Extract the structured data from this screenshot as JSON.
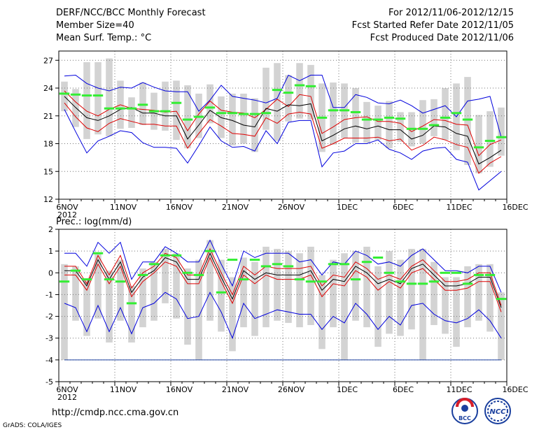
{
  "header": {
    "title": "DERF/NCC/BCC Monthly Forecast",
    "member_size": "Member Size=40",
    "variable": "Mean Surf. Temp.: °C",
    "period": "For 2012/11/06-2012/12/15",
    "refer_date": "Fcst Started Refer Date 2012/11/05",
    "produced_date": "Fcst Produced Date 2012/11/06"
  },
  "footer": {
    "url": "http://cmdp.ncc.cma.gov.cn",
    "credit": "GrADS: COLA/IGES",
    "logo_bcc": "BCC",
    "logo_ncc": "NCC"
  },
  "colors": {
    "ensemble_mean": "#000000",
    "inner_spread": "#dd0000",
    "outer_envelope": "#0000dd",
    "member_box": "#d3d3d3",
    "climatology_marker": "#33ee33",
    "grid": "#777777"
  },
  "chart_data": [
    {
      "type": "line",
      "title": "Mean Surf. Temp.: °C",
      "ylim": [
        12,
        28
      ],
      "yticks": [
        12,
        15,
        18,
        21,
        24,
        27
      ],
      "xlim": [
        0,
        40
      ],
      "xticks": [
        0,
        5,
        10,
        15,
        20,
        25,
        30,
        35,
        40
      ],
      "xtick_labels": [
        "6NOV",
        "11NOV",
        "16NOV",
        "21NOV",
        "26NOV",
        "1DEC",
        "6DEC",
        "11DEC",
        "16DEC"
      ],
      "year_label": "2012",
      "x": [
        0,
        1,
        2,
        3,
        4,
        5,
        6,
        7,
        8,
        9,
        10,
        11,
        12,
        13,
        14,
        15,
        16,
        17,
        18,
        19,
        20,
        21,
        22,
        23,
        24,
        25,
        26,
        27,
        28,
        29,
        30,
        31,
        32,
        33,
        34,
        35,
        36,
        37,
        38,
        39
      ],
      "series": [
        {
          "name": "max",
          "role": "outer",
          "values": [
            25.3,
            25.4,
            24.5,
            24.0,
            23.7,
            24.1,
            24.0,
            24.6,
            24.1,
            23.7,
            23.6,
            23.6,
            21.5,
            22.7,
            24.3,
            23.1,
            22.9,
            22.7,
            22.4,
            22.9,
            25.4,
            24.8,
            25.4,
            25.4,
            21.9,
            21.9,
            23.3,
            23.0,
            22.4,
            22.3,
            22.7,
            22.1,
            21.3,
            21.7,
            22.1,
            20.9,
            22.6,
            22.8,
            23.1,
            18.7
          ]
        },
        {
          "name": "upper",
          "role": "inner",
          "values": [
            23.7,
            22.5,
            21.5,
            21.0,
            21.7,
            22.2,
            21.8,
            21.7,
            21.6,
            21.4,
            21.5,
            19.4,
            21.2,
            22.6,
            21.6,
            21.4,
            21.3,
            20.8,
            21.7,
            22.8,
            22.0,
            23.3,
            23.1,
            19.1,
            19.8,
            20.6,
            20.8,
            20.9,
            20.4,
            20.4,
            20.2,
            19.3,
            19.9,
            20.6,
            20.5,
            20.1,
            20.0,
            16.7,
            17.9,
            18.4
          ]
        },
        {
          "name": "mean",
          "role": "mean",
          "values": [
            23.1,
            21.9,
            20.8,
            20.5,
            21.0,
            21.7,
            21.9,
            21.3,
            21.3,
            21.0,
            21.0,
            18.5,
            20.0,
            21.6,
            20.8,
            20.5,
            20.0,
            19.8,
            21.8,
            21.5,
            22.2,
            22.1,
            22.3,
            18.3,
            18.9,
            19.6,
            19.9,
            19.6,
            19.9,
            19.5,
            19.5,
            18.5,
            18.9,
            19.9,
            19.8,
            19.1,
            18.8,
            15.8,
            16.5,
            17.3
          ]
        },
        {
          "name": "lower",
          "role": "inner",
          "values": [
            22.4,
            20.9,
            19.7,
            19.3,
            20.2,
            20.7,
            20.4,
            20.1,
            20.1,
            19.9,
            19.9,
            17.5,
            19.1,
            20.6,
            19.9,
            19.1,
            19.0,
            18.8,
            20.8,
            20.2,
            21.2,
            21.4,
            21.2,
            17.5,
            18.0,
            18.6,
            18.6,
            18.6,
            18.7,
            18.3,
            18.5,
            17.3,
            17.8,
            18.7,
            18.4,
            17.9,
            17.6,
            14.8,
            15.9,
            16.6
          ]
        },
        {
          "name": "min",
          "role": "outer",
          "values": [
            21.7,
            19.3,
            17.0,
            18.3,
            18.8,
            19.4,
            19.2,
            18.1,
            17.6,
            17.6,
            17.5,
            15.9,
            17.8,
            19.8,
            18.3,
            17.6,
            17.7,
            17.2,
            19.4,
            18.0,
            20.3,
            20.5,
            20.5,
            15.5,
            17.0,
            17.2,
            18.0,
            18.0,
            18.4,
            17.4,
            17.0,
            16.3,
            17.2,
            17.5,
            17.6,
            16.3,
            16.0,
            13.0,
            14.0,
            15.0
          ]
        }
      ],
      "boxes": {
        "top": [
          24.7,
          23.9,
          26.8,
          26.8,
          27.2,
          24.8,
          23.0,
          24.6,
          23.5,
          24.7,
          24.8,
          24.3,
          23.4,
          24.4,
          23.1,
          23.4,
          23.4,
          22.9,
          26.2,
          26.7,
          25.4,
          26.7,
          26.5,
          24.5,
          24.6,
          24.5,
          24.0,
          22.5,
          22.1,
          22.6,
          21.4,
          21.4,
          22.7,
          22.8,
          24.0,
          24.5,
          25.2,
          21.1,
          21.5,
          21.9
        ],
        "bottom": [
          21.5,
          19.8,
          18.5,
          19.0,
          18.8,
          19.6,
          19.7,
          20.0,
          19.5,
          19.4,
          18.4,
          17.5,
          18.6,
          20.2,
          18.6,
          17.8,
          18.0,
          17.1,
          19.5,
          18.3,
          20.4,
          20.7,
          20.6,
          17.1,
          17.9,
          18.6,
          18.1,
          18.1,
          18.4,
          17.5,
          18.2,
          17.7,
          18.0,
          18.8,
          18.4,
          17.3,
          15.7,
          14.8,
          15.5,
          16.7
        ]
      },
      "climatology": [
        23.4,
        23.3,
        23.2,
        23.2,
        21.8,
        21.8,
        21.8,
        22.2,
        21.5,
        21.5,
        22.4,
        20.6,
        20.9,
        21.9,
        21.3,
        21.3,
        21.2,
        21.2,
        21.3,
        23.8,
        23.5,
        24.3,
        24.2,
        20.8,
        21.6,
        21.6,
        21.4,
        20.6,
        20.6,
        20.8,
        20.7,
        19.6,
        19.6,
        20.0,
        20.8,
        21.3,
        20.6,
        17.6,
        18.3,
        18.7
      ]
    },
    {
      "type": "line",
      "title": "Prec.: log(mm/d)",
      "ylim": [
        -5,
        2
      ],
      "yticks": [
        -5,
        -4,
        -3,
        -2,
        -1,
        0,
        1,
        2
      ],
      "xlim": [
        0,
        40
      ],
      "xticks": [
        0,
        5,
        10,
        15,
        20,
        25,
        30,
        35,
        40
      ],
      "xtick_labels": [
        "6NOV",
        "11NOV",
        "16NOV",
        "21NOV",
        "26NOV",
        "1DEC",
        "6DEC",
        "11DEC",
        "16DEC"
      ],
      "year_label": "2012",
      "x": [
        0,
        1,
        2,
        3,
        4,
        5,
        6,
        7,
        8,
        9,
        10,
        11,
        12,
        13,
        14,
        15,
        16,
        17,
        18,
        19,
        20,
        21,
        22,
        23,
        24,
        25,
        26,
        27,
        28,
        29,
        30,
        31,
        32,
        33,
        34,
        35,
        36,
        37,
        38,
        39
      ],
      "series": [
        {
          "name": "max",
          "role": "outer",
          "values": [
            0.9,
            0.9,
            0.3,
            1.4,
            0.9,
            1.4,
            -0.3,
            0.5,
            0.5,
            1.2,
            0.9,
            0.5,
            0.5,
            1.5,
            0.4,
            -0.6,
            1.0,
            0.7,
            0.9,
            0.9,
            0.9,
            0.5,
            0.6,
            -0.1,
            0.5,
            0.4,
            1.0,
            0.8,
            0.4,
            0.5,
            0.3,
            0.8,
            1.1,
            0.6,
            0.1,
            0.1,
            0.0,
            0.3,
            0.3,
            -0.9
          ]
        },
        {
          "name": "upper",
          "role": "inner",
          "values": [
            0.3,
            0.3,
            -0.5,
            0.8,
            -0.1,
            0.8,
            -0.7,
            0.0,
            0.3,
            0.9,
            0.7,
            -0.1,
            -0.1,
            1.1,
            0.0,
            -1.0,
            0.3,
            -0.1,
            0.3,
            0.2,
            0.2,
            0.2,
            0.3,
            -0.6,
            -0.1,
            -0.2,
            0.5,
            0.2,
            -0.3,
            -0.1,
            -0.3,
            0.3,
            0.6,
            0.1,
            -0.4,
            -0.4,
            -0.3,
            0.0,
            0.0,
            -1.5
          ]
        },
        {
          "name": "mean",
          "role": "mean",
          "values": [
            0.1,
            0.1,
            -0.6,
            0.6,
            -0.3,
            0.5,
            -0.9,
            -0.2,
            0.1,
            0.7,
            0.5,
            -0.3,
            -0.3,
            0.9,
            -0.2,
            -1.2,
            0.1,
            -0.3,
            0.0,
            -0.1,
            -0.1,
            -0.1,
            0.1,
            -0.8,
            -0.3,
            -0.4,
            0.3,
            0.0,
            -0.5,
            -0.3,
            -0.5,
            0.2,
            0.4,
            -0.1,
            -0.6,
            -0.6,
            -0.5,
            -0.2,
            -0.2,
            -1.6
          ]
        },
        {
          "name": "lower",
          "role": "inner",
          "values": [
            -0.1,
            -0.1,
            -0.8,
            0.4,
            -0.5,
            0.3,
            -1.1,
            -0.4,
            0.0,
            0.5,
            0.3,
            -0.5,
            -0.5,
            0.7,
            -0.4,
            -1.4,
            -0.1,
            -0.5,
            -0.1,
            -0.3,
            -0.3,
            -0.3,
            -0.1,
            -1.1,
            -0.5,
            -0.6,
            0.1,
            -0.2,
            -0.8,
            -0.4,
            -0.7,
            0.0,
            0.2,
            -0.3,
            -0.8,
            -0.8,
            -0.7,
            -0.4,
            -0.4,
            -1.8
          ]
        },
        {
          "name": "min",
          "role": "outer",
          "values": [
            -1.4,
            -1.6,
            -2.7,
            -1.5,
            -2.7,
            -1.6,
            -2.8,
            -1.6,
            -1.4,
            -0.9,
            -1.2,
            -2.1,
            -2.0,
            -0.9,
            -1.8,
            -3.0,
            -1.4,
            -2.1,
            -1.9,
            -1.7,
            -1.8,
            -1.9,
            -1.9,
            -2.6,
            -2.0,
            -2.3,
            -1.4,
            -1.9,
            -2.6,
            -2.0,
            -2.4,
            -1.5,
            -1.4,
            -1.9,
            -2.2,
            -2.3,
            -2.1,
            -1.7,
            -2.2,
            -3.0
          ]
        }
      ],
      "boxes": {
        "top": [
          0.4,
          0.3,
          -0.3,
          0.9,
          0.1,
          0.6,
          -0.6,
          0.2,
          0.5,
          1.1,
          0.9,
          0.2,
          0.6,
          1.5,
          0.6,
          -0.2,
          0.7,
          0.5,
          1.2,
          1.1,
          1.0,
          0.9,
          1.2,
          -0.1,
          0.6,
          0.9,
          1.0,
          1.2,
          0.3,
          1.0,
          0.6,
          1.1,
          1.1,
          0.5,
          -0.2,
          -0.2,
          0.3,
          0.4,
          0.4,
          -0.9
        ],
        "bottom": [
          -4.0,
          -2.2,
          -2.9,
          -2.1,
          -3.2,
          -2.2,
          -3.2,
          -2.5,
          -2.2,
          -1.4,
          -2.1,
          -3.3,
          -4.0,
          -2.2,
          -2.7,
          -3.6,
          -2.5,
          -2.9,
          -2.5,
          -2.2,
          -2.3,
          -2.5,
          -2.4,
          -3.5,
          -2.5,
          -4.0,
          -2.2,
          -2.5,
          -3.4,
          -2.8,
          -2.9,
          -2.6,
          -4.0,
          -2.4,
          -2.8,
          -3.4,
          -2.5,
          -2.2,
          -2.7,
          -4.0
        ]
      },
      "climatology": [
        -0.4,
        0.1,
        -0.3,
        0.9,
        -0.3,
        -0.4,
        -1.4,
        -0.1,
        0.4,
        0.8,
        0.8,
        0.0,
        -0.1,
        1.0,
        -0.9,
        0.6,
        -0.3,
        0.6,
        0.3,
        0.4,
        0.3,
        -0.3,
        -0.4,
        -0.4,
        0.4,
        0.4,
        -0.3,
        0.5,
        0.7,
        0.0,
        -0.4,
        -0.5,
        -0.5,
        -0.4,
        0.0,
        0.0,
        -0.5,
        -0.1,
        -0.1,
        -1.2
      ],
      "reference_line": -4
    }
  ]
}
